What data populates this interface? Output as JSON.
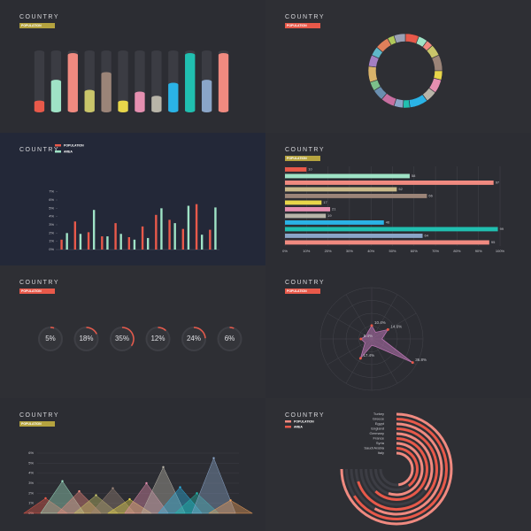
{
  "chart_data": [
    {
      "type": "cylinder-bar",
      "title": "COUNTRY",
      "subtitle": "POPULATION",
      "tag_color": "#b5a33f",
      "values": [
        20,
        55,
        100,
        38,
        68,
        20,
        35,
        28,
        50,
        100,
        55,
        100
      ],
      "ylim": [
        0,
        100
      ],
      "colors": [
        "#e8594a",
        "#9fe3c6",
        "#f08a80",
        "#c9c56a",
        "#9b8478",
        "#e8d64a",
        "#e58fb0",
        "#b8b4a8",
        "#2ab3e6",
        "#20bfb0",
        "#8aa5c8",
        "#f08a80"
      ]
    },
    {
      "type": "donut",
      "title": "COUNTRY",
      "subtitle": "POPULATION",
      "tag_color": "#e8594a",
      "values": [
        6,
        4,
        3,
        5,
        7,
        4,
        6,
        5,
        8,
        3,
        4,
        6,
        5,
        4,
        7,
        5,
        4,
        6,
        3,
        5
      ],
      "colors": [
        "#e8594a",
        "#9fe3c6",
        "#f08a80",
        "#c9c56a",
        "#9b8478",
        "#e8d64a",
        "#e58fb0",
        "#b8b4a8",
        "#2ab3e6",
        "#20bfb0",
        "#8aa5c8",
        "#c76fa0",
        "#6a8fb0",
        "#7cc08a",
        "#d9b36a",
        "#a47fc2",
        "#5fb7c9",
        "#e07f5a",
        "#b0c85a",
        "#9aa0b4"
      ]
    },
    {
      "type": "grouped-bar",
      "title": "COUNTRY",
      "series": [
        {
          "name": "POPULATION",
          "color": "#e8594a",
          "values": [
            1.2,
            3.4,
            2.1,
            1.6,
            3.2,
            1.5,
            2.8,
            4.2,
            3.6,
            2.5,
            5.5,
            2.4
          ]
        },
        {
          "name": "AREA",
          "color": "#9fe3c6",
          "values": [
            2.0,
            1.9,
            4.8,
            1.6,
            1.9,
            1.2,
            1.4,
            5.0,
            3.2,
            5.3,
            1.8,
            5.1
          ]
        }
      ],
      "ylim": [
        0,
        7.5
      ],
      "yticks": [
        {
          "value": 0,
          "label": "0%"
        },
        {
          "value": 1,
          "label": "1%"
        },
        {
          "value": 2,
          "label": "2%"
        },
        {
          "value": 3,
          "label": "3%"
        },
        {
          "value": 4,
          "label": "4%"
        },
        {
          "value": 5,
          "label": "5%"
        },
        {
          "value": 6,
          "label": "6%"
        },
        {
          "value": 7,
          "label": "7%"
        }
      ]
    },
    {
      "type": "hbar",
      "title": "COUNTRY",
      "subtitle": "POPULATION",
      "tag_color": "#b5a33f",
      "values": [
        10,
        58,
        97,
        52,
        66,
        17,
        21,
        19,
        46,
        99,
        64,
        95
      ],
      "xlim": [
        0,
        100
      ],
      "xticks": [
        {
          "value": 0,
          "label": "0%"
        },
        {
          "value": 10,
          "label": "10%"
        },
        {
          "value": 20,
          "label": "20%"
        },
        {
          "value": 30,
          "label": "30%"
        },
        {
          "value": 40,
          "label": "40%"
        },
        {
          "value": 50,
          "label": "50%"
        },
        {
          "value": 60,
          "label": "60%"
        },
        {
          "value": 70,
          "label": "70%"
        },
        {
          "value": 80,
          "label": "80%"
        },
        {
          "value": 90,
          "label": "90%"
        },
        {
          "value": 100,
          "label": "100%"
        }
      ],
      "colors": [
        "#e8594a",
        "#9fe3c6",
        "#f08a80",
        "#c9b98a",
        "#9b8478",
        "#e8d64a",
        "#e58fb0",
        "#b8b4a8",
        "#2ab3e6",
        "#20bfb0",
        "#8aa5c8",
        "#f08a80"
      ]
    },
    {
      "type": "gauge",
      "title": "COUNTRY",
      "subtitle": "POPULATION",
      "tag_color": "#e8594a",
      "values": [
        5,
        18,
        35,
        12,
        24,
        6
      ],
      "value_labels": [
        "5%",
        "18%",
        "35%",
        "12%",
        "24%",
        "6%"
      ],
      "color": "#e8594a",
      "ylim": [
        0,
        100
      ]
    },
    {
      "type": "radar",
      "title": "COUNTRY",
      "subtitle": "POPULATION",
      "tag_color": "#e8594a",
      "values": [
        10.4,
        6,
        14.6,
        8,
        36.8,
        7,
        5,
        17.4,
        6,
        8.4,
        5,
        6
      ],
      "value_labels": [
        "10.4%",
        null,
        "14.6%",
        null,
        "36.8%",
        null,
        null,
        "17.4%",
        null,
        "8.4%",
        null,
        null
      ],
      "ylim": [
        0,
        40
      ],
      "color": "#b873b0"
    },
    {
      "type": "peaks",
      "title": "COUNTRY",
      "subtitle": "POPULATION",
      "tag_color": "#b5a33f",
      "values": [
        1.5,
        3.2,
        2.2,
        1.8,
        2.5,
        1.4,
        3.0,
        4.6,
        2.6,
        2.0,
        5.5,
        1.3
      ],
      "ylim": [
        0,
        6
      ],
      "yticks": [
        {
          "value": 0,
          "label": "0%"
        },
        {
          "value": 1,
          "label": "1%"
        },
        {
          "value": 2,
          "label": "2%"
        },
        {
          "value": 3,
          "label": "3%"
        },
        {
          "value": 4,
          "label": "4%"
        },
        {
          "value": 5,
          "label": "5%"
        },
        {
          "value": 6,
          "label": "6%"
        }
      ],
      "colors": [
        "#e8594a",
        "#9fe3c6",
        "#f08a80",
        "#c9c56a",
        "#9b8478",
        "#e8d64a",
        "#e58fb0",
        "#b8b4a8",
        "#2ab3e6",
        "#20bfb0",
        "#8aa5c8",
        "#f0a05a"
      ]
    },
    {
      "type": "radial-bar",
      "title": "COUNTRY",
      "series": [
        {
          "name": "POPULATION",
          "color": "#f08a80"
        },
        {
          "name": "AREA",
          "color": "#e8594a"
        }
      ],
      "categories": [
        "Italy",
        "Saudi Arabia",
        "Syria",
        "France",
        "Germany",
        "England",
        "Egypt",
        "Greece",
        "Turkey"
      ],
      "values": [
        48,
        40,
        55,
        62,
        35,
        70,
        58,
        66,
        75
      ],
      "ylim": [
        0,
        100
      ]
    }
  ]
}
